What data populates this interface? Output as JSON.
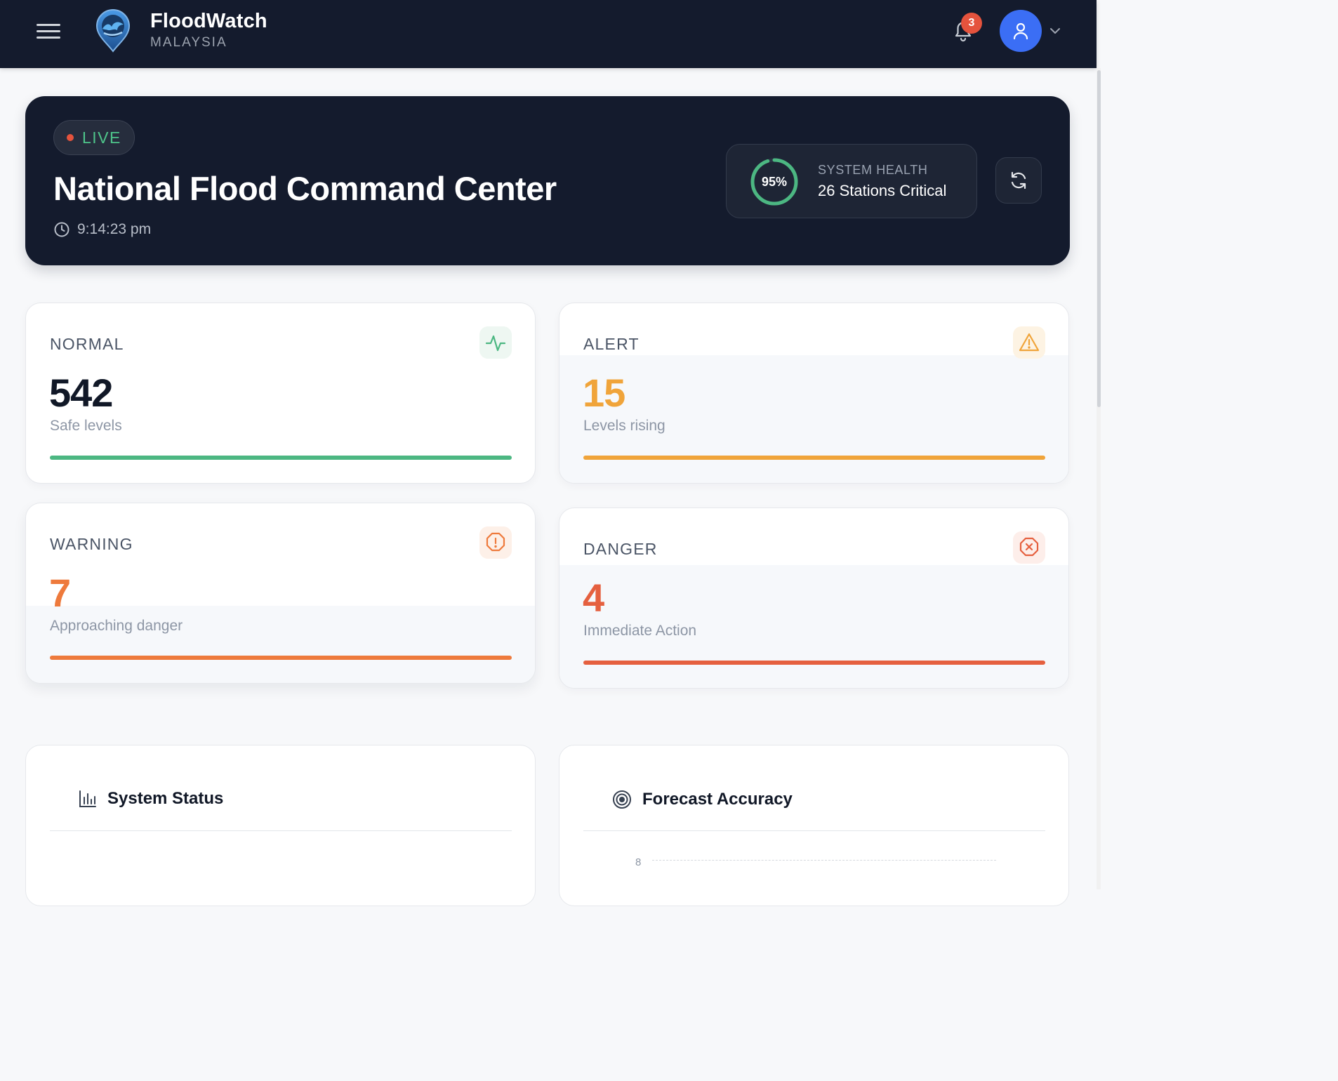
{
  "header": {
    "brand_name": "FloodWatch",
    "brand_subtitle": "MALAYSIA",
    "notification_count": "3",
    "accent": "#3b6ef5"
  },
  "hero": {
    "live_label": "LIVE",
    "title": "National Flood Command Center",
    "time": "9:14:23 pm",
    "system_health": {
      "percent_label": "95%",
      "percent_value": 95,
      "label": "SYSTEM HEALTH",
      "value": "26 Stations Critical"
    }
  },
  "stats": {
    "normal": {
      "label": "NORMAL",
      "value": "542",
      "subtitle": "Safe levels",
      "color": "#4cb782",
      "icon": "activity-icon"
    },
    "alert": {
      "label": "ALERT",
      "value": "15",
      "subtitle": "Levels rising",
      "color": "#f0a43a",
      "icon": "warning-triangle-icon"
    },
    "warning": {
      "label": "WARNING",
      "value": "7",
      "subtitle": "Approaching danger",
      "color": "#ee7a3c",
      "icon": "alert-octagon-icon"
    },
    "danger": {
      "label": "DANGER",
      "value": "4",
      "subtitle": "Immediate Action",
      "color": "#e5603f",
      "icon": "x-octagon-icon"
    }
  },
  "panels": {
    "system_status": {
      "title": "System Status",
      "icon": "bar-chart-icon"
    },
    "forecast_accuracy": {
      "title": "Forecast Accuracy",
      "icon": "target-icon",
      "y_tick": "8"
    }
  }
}
